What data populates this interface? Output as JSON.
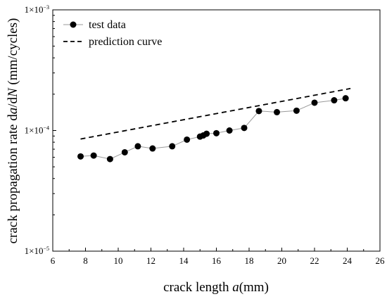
{
  "chart_data": {
    "type": "line",
    "title": "",
    "xlabel_prefix": "crack length ",
    "xlabel_var": "a",
    "xlabel_suffix": "(mm)",
    "ylabel_prefix": "crack propagation rate d",
    "ylabel_var1": "a",
    "ylabel_mid": "/d",
    "ylabel_var2": "N",
    "ylabel_suffix": " (mm/cycles)",
    "xlim": [
      6,
      26
    ],
    "x_ticks": [
      "6",
      "8",
      "10",
      "12",
      "14",
      "16",
      "18",
      "20",
      "22",
      "24",
      "26"
    ],
    "y_scale": "log",
    "ylim": [
      1e-05,
      0.001
    ],
    "y_ticks": [
      {
        "base": "1×10",
        "exp": "−5"
      },
      {
        "base": "1×10",
        "exp": "−4"
      },
      {
        "base": "1×10",
        "exp": "−3"
      }
    ],
    "legend_position": "top-left",
    "series": [
      {
        "name": "test data",
        "style": "line+markers",
        "color": "#000000",
        "line_color": "#9a9a9a",
        "x": [
          7.7,
          8.5,
          9.5,
          10.4,
          11.2,
          12.1,
          13.3,
          14.2,
          15.0,
          15.2,
          15.4,
          16.0,
          16.8,
          17.7,
          18.6,
          19.7,
          20.9,
          22.0,
          23.2,
          23.9
        ],
        "y": [
          6.1e-05,
          6.2e-05,
          5.8e-05,
          6.6e-05,
          7.4e-05,
          7.1e-05,
          7.4e-05,
          8.4e-05,
          8.9e-05,
          9.1e-05,
          9.4e-05,
          9.5e-05,
          0.0001,
          0.000105,
          0.000145,
          0.000142,
          0.000146,
          0.00017,
          0.000178,
          0.000185
        ]
      },
      {
        "name": "prediction curve",
        "style": "dashed",
        "color": "#000000",
        "x": [
          7.7,
          24.2
        ],
        "y": [
          8.5e-05,
          0.000223
        ]
      }
    ]
  }
}
